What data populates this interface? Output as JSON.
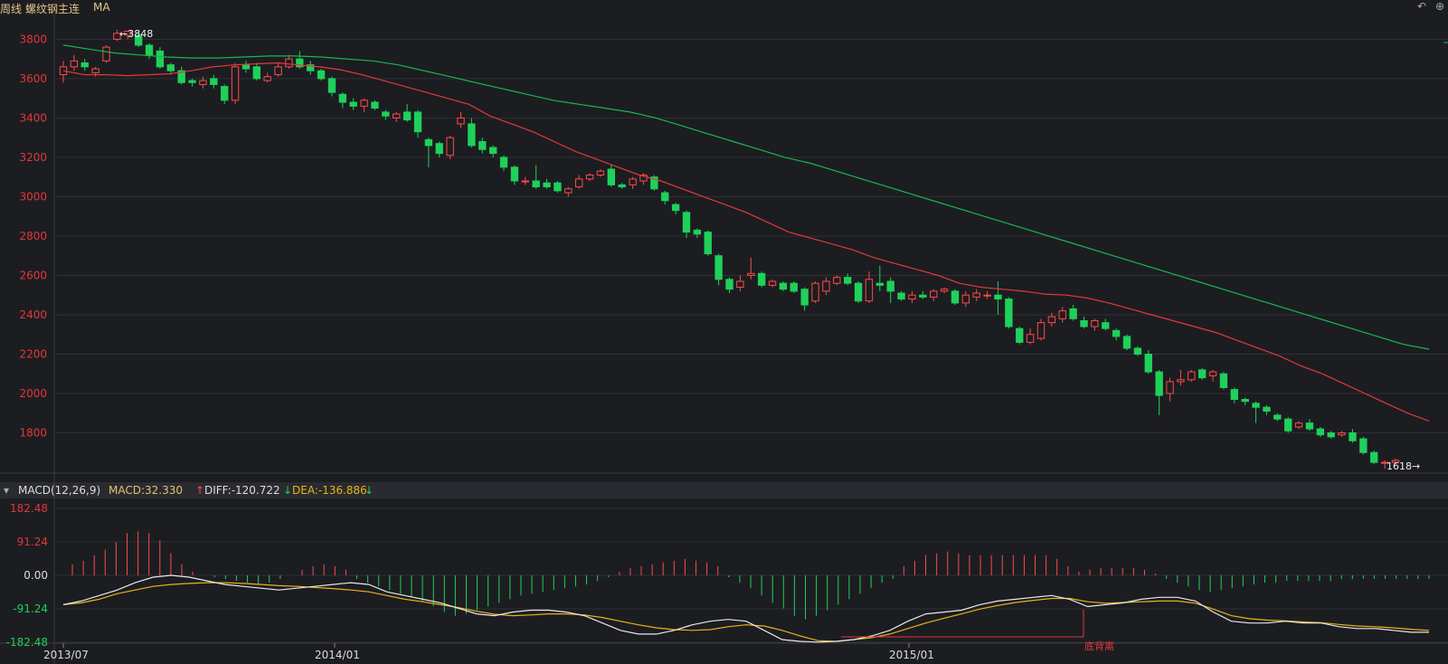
{
  "header": {
    "period": "周线",
    "instrument": "螺纹钢主连",
    "indicator": "MA",
    "icons": [
      "undo-icon",
      "zoom-in-icon"
    ]
  },
  "macd_header": {
    "title": "MACD(12,26,9)",
    "macd": "MACD:32.330",
    "diff": "DIFF:-120.722",
    "dea": "DEA:-136.886"
  },
  "annotation": {
    "label": "底背离"
  },
  "markers": {
    "high": "←3848",
    "low": "1618→"
  },
  "colors": {
    "up": "#ff4a4a",
    "down": "#1fd15b",
    "ma_red": "#e2383a",
    "ma_green": "#15b850",
    "diff": "#e8e8e8",
    "dea": "#e6b417",
    "bg": "#1c1d21",
    "grid": "#2e3036"
  },
  "chart_data": [
    {
      "type": "candlestick",
      "title": "螺纹钢主连 周线",
      "y_ticks": [
        3800,
        3600,
        3400,
        3200,
        3000,
        2800,
        2600,
        2400,
        2200,
        2000,
        1800
      ],
      "ylim": [
        1600,
        3880
      ],
      "x_ticks": [
        "2013/07",
        "2014/01",
        "2015/01"
      ],
      "high_marker": 3848,
      "low_marker": 1618,
      "candles": [
        [
          3620,
          3660,
          3580,
          3690
        ],
        [
          3660,
          3690,
          3640,
          3720
        ],
        [
          3680,
          3660,
          3640,
          3700
        ],
        [
          3630,
          3650,
          3610,
          3660
        ],
        [
          3690,
          3760,
          3680,
          3770
        ],
        [
          3800,
          3830,
          3790,
          3848
        ],
        [
          3820,
          3840,
          3800,
          3845
        ],
        [
          3820,
          3770,
          3760,
          3840
        ],
        [
          3770,
          3720,
          3700,
          3780
        ],
        [
          3740,
          3660,
          3650,
          3760
        ],
        [
          3670,
          3640,
          3620,
          3680
        ],
        [
          3640,
          3580,
          3570,
          3660
        ],
        [
          3590,
          3580,
          3560,
          3600
        ],
        [
          3570,
          3590,
          3550,
          3610
        ],
        [
          3600,
          3570,
          3550,
          3620
        ],
        [
          3560,
          3490,
          3470,
          3570
        ],
        [
          3490,
          3660,
          3470,
          3680
        ],
        [
          3670,
          3650,
          3630,
          3690
        ],
        [
          3660,
          3600,
          3590,
          3680
        ],
        [
          3590,
          3610,
          3580,
          3630
        ],
        [
          3620,
          3660,
          3610,
          3680
        ],
        [
          3660,
          3700,
          3650,
          3720
        ],
        [
          3700,
          3660,
          3650,
          3740
        ],
        [
          3670,
          3640,
          3620,
          3690
        ],
        [
          3640,
          3600,
          3590,
          3650
        ],
        [
          3600,
          3530,
          3510,
          3610
        ],
        [
          3520,
          3480,
          3450,
          3530
        ],
        [
          3480,
          3460,
          3440,
          3500
        ],
        [
          3460,
          3490,
          3430,
          3500
        ],
        [
          3480,
          3450,
          3440,
          3490
        ],
        [
          3430,
          3410,
          3390,
          3440
        ],
        [
          3400,
          3420,
          3380,
          3430
        ],
        [
          3430,
          3390,
          3380,
          3470
        ],
        [
          3430,
          3330,
          3300,
          3440
        ],
        [
          3290,
          3260,
          3150,
          3300
        ],
        [
          3270,
          3220,
          3200,
          3280
        ],
        [
          3210,
          3300,
          3190,
          3310
        ],
        [
          3370,
          3400,
          3350,
          3430
        ],
        [
          3370,
          3260,
          3250,
          3400
        ],
        [
          3280,
          3240,
          3220,
          3300
        ],
        [
          3250,
          3220,
          3200,
          3260
        ],
        [
          3200,
          3150,
          3130,
          3210
        ],
        [
          3150,
          3080,
          3060,
          3160
        ],
        [
          3080,
          3080,
          3060,
          3100
        ],
        [
          3080,
          3050,
          3040,
          3160
        ],
        [
          3070,
          3050,
          3040,
          3090
        ],
        [
          3070,
          3030,
          3020,
          3080
        ],
        [
          3020,
          3040,
          3000,
          3050
        ],
        [
          3050,
          3090,
          3040,
          3110
        ],
        [
          3090,
          3110,
          3080,
          3120
        ],
        [
          3110,
          3130,
          3100,
          3140
        ],
        [
          3140,
          3060,
          3050,
          3160
        ],
        [
          3060,
          3050,
          3040,
          3070
        ],
        [
          3060,
          3090,
          3040,
          3100
        ],
        [
          3080,
          3110,
          3060,
          3120
        ],
        [
          3100,
          3040,
          3030,
          3110
        ],
        [
          3020,
          2980,
          2960,
          3030
        ],
        [
          2960,
          2930,
          2910,
          2970
        ],
        [
          2920,
          2820,
          2790,
          2930
        ],
        [
          2830,
          2810,
          2790,
          2840
        ],
        [
          2820,
          2710,
          2700,
          2830
        ],
        [
          2700,
          2580,
          2550,
          2710
        ],
        [
          2580,
          2530,
          2510,
          2590
        ],
        [
          2540,
          2570,
          2520,
          2600
        ],
        [
          2600,
          2610,
          2580,
          2690
        ],
        [
          2610,
          2550,
          2540,
          2620
        ],
        [
          2550,
          2570,
          2540,
          2580
        ],
        [
          2560,
          2530,
          2520,
          2570
        ],
        [
          2560,
          2520,
          2510,
          2570
        ],
        [
          2530,
          2450,
          2420,
          2540
        ],
        [
          2470,
          2560,
          2460,
          2570
        ],
        [
          2520,
          2570,
          2500,
          2590
        ],
        [
          2560,
          2590,
          2550,
          2600
        ],
        [
          2590,
          2560,
          2550,
          2610
        ],
        [
          2560,
          2470,
          2460,
          2570
        ],
        [
          2470,
          2580,
          2460,
          2620
        ],
        [
          2560,
          2550,
          2520,
          2650
        ],
        [
          2570,
          2520,
          2460,
          2590
        ],
        [
          2510,
          2480,
          2470,
          2520
        ],
        [
          2480,
          2500,
          2460,
          2520
        ],
        [
          2500,
          2490,
          2480,
          2520
        ],
        [
          2490,
          2520,
          2470,
          2530
        ],
        [
          2520,
          2530,
          2510,
          2540
        ],
        [
          2520,
          2460,
          2450,
          2530
        ],
        [
          2460,
          2500,
          2440,
          2520
        ],
        [
          2490,
          2510,
          2470,
          2530
        ],
        [
          2500,
          2500,
          2480,
          2520
        ],
        [
          2500,
          2480,
          2400,
          2570
        ],
        [
          2480,
          2340,
          2330,
          2490
        ],
        [
          2330,
          2260,
          2250,
          2340
        ],
        [
          2260,
          2300,
          2250,
          2330
        ],
        [
          2280,
          2360,
          2270,
          2380
        ],
        [
          2360,
          2390,
          2340,
          2410
        ],
        [
          2380,
          2420,
          2360,
          2440
        ],
        [
          2430,
          2380,
          2370,
          2450
        ],
        [
          2370,
          2340,
          2330,
          2390
        ],
        [
          2340,
          2370,
          2320,
          2380
        ],
        [
          2360,
          2330,
          2320,
          2380
        ],
        [
          2320,
          2290,
          2270,
          2330
        ],
        [
          2290,
          2230,
          2220,
          2300
        ],
        [
          2230,
          2200,
          2190,
          2240
        ],
        [
          2200,
          2110,
          2100,
          2220
        ],
        [
          2110,
          1990,
          1890,
          2120
        ],
        [
          2000,
          2060,
          1960,
          2080
        ],
        [
          2060,
          2070,
          2040,
          2120
        ],
        [
          2070,
          2110,
          2060,
          2120
        ],
        [
          2120,
          2080,
          2070,
          2130
        ],
        [
          2090,
          2110,
          2060,
          2120
        ],
        [
          2100,
          2030,
          2020,
          2110
        ],
        [
          2020,
          1970,
          1950,
          2030
        ],
        [
          1970,
          1960,
          1940,
          1980
        ],
        [
          1950,
          1930,
          1850,
          1960
        ],
        [
          1930,
          1910,
          1890,
          1940
        ],
        [
          1890,
          1870,
          1860,
          1900
        ],
        [
          1870,
          1810,
          1800,
          1880
        ],
        [
          1830,
          1850,
          1820,
          1860
        ],
        [
          1850,
          1820,
          1810,
          1870
        ],
        [
          1820,
          1790,
          1780,
          1830
        ],
        [
          1800,
          1780,
          1770,
          1810
        ],
        [
          1790,
          1800,
          1780,
          1810
        ],
        [
          1800,
          1760,
          1750,
          1820
        ],
        [
          1770,
          1700,
          1690,
          1780
        ],
        [
          1700,
          1650,
          1640,
          1710
        ],
        [
          1650,
          1650,
          1618,
          1660
        ],
        [
          1650,
          1660,
          1640,
          1670
        ]
      ],
      "ma_red": [
        3640,
        3620,
        3620,
        3615,
        3620,
        3625,
        3640,
        3660,
        3670,
        3675,
        3680,
        3670,
        3660,
        3645,
        3620,
        3590,
        3560,
        3530,
        3500,
        3470,
        3410,
        3370,
        3330,
        3280,
        3230,
        3190,
        3150,
        3110,
        3080,
        3040,
        3000,
        2960,
        2920,
        2870,
        2820,
        2790,
        2760,
        2730,
        2690,
        2660,
        2630,
        2600,
        2560,
        2540,
        2530,
        2520,
        2505,
        2500,
        2485,
        2460,
        2430,
        2400,
        2370,
        2340,
        2310,
        2270,
        2230,
        2190,
        2140,
        2100,
        2050,
        2000,
        1950,
        1900,
        1860
      ],
      "ma_green": [
        3770,
        3750,
        3730,
        3720,
        3710,
        3705,
        3705,
        3710,
        3715,
        3715,
        3710,
        3700,
        3690,
        3670,
        3640,
        3610,
        3580,
        3550,
        3520,
        3490,
        3470,
        3450,
        3430,
        3400,
        3360,
        3320,
        3280,
        3240,
        3200,
        3170,
        3130,
        3090,
        3050,
        3010,
        2970,
        2930,
        2890,
        2850,
        2810,
        2770,
        2730,
        2690,
        2650,
        2610,
        2570,
        2530,
        2490,
        2450,
        2410,
        2370,
        2330,
        2290,
        2250,
        2225
      ]
    },
    {
      "type": "macd",
      "title": "MACD(12,26,9)",
      "y_ticks": [
        182.48,
        91.24,
        0.0,
        -91.24,
        -182.48
      ],
      "ylim": [
        -182.48,
        182.48
      ],
      "histogram": [
        30,
        40,
        55,
        70,
        90,
        115,
        120,
        115,
        95,
        60,
        30,
        10,
        0,
        -5,
        -10,
        -15,
        -20,
        -25,
        -20,
        -10,
        0,
        15,
        25,
        30,
        25,
        15,
        -10,
        -20,
        -30,
        -40,
        -50,
        -60,
        -70,
        -85,
        -100,
        -110,
        -105,
        -95,
        -85,
        -75,
        -65,
        -55,
        -50,
        -45,
        -40,
        -35,
        -30,
        -25,
        -15,
        -5,
        10,
        20,
        25,
        30,
        35,
        40,
        45,
        40,
        35,
        25,
        -5,
        -20,
        -35,
        -55,
        -75,
        -90,
        -110,
        -120,
        -110,
        -95,
        -80,
        -65,
        -50,
        -35,
        -20,
        -10,
        25,
        40,
        55,
        60,
        65,
        60,
        55,
        55,
        55,
        55,
        55,
        55,
        55,
        55,
        45,
        25,
        10,
        15,
        20,
        20,
        20,
        20,
        15,
        5,
        -10,
        -20,
        -30,
        -40,
        -45,
        -40,
        -35,
        -30,
        -25,
        -20,
        -20,
        -15,
        -15,
        -15,
        -15,
        -15,
        -10,
        -10,
        -10,
        -10,
        -10,
        -10,
        -10,
        -10,
        -10
      ],
      "diff": [
        -80,
        -70,
        -55,
        -40,
        -20,
        -5,
        0,
        -5,
        -15,
        -25,
        -30,
        -35,
        -40,
        -35,
        -30,
        -25,
        -20,
        -25,
        -45,
        -55,
        -65,
        -75,
        -90,
        -105,
        -110,
        -100,
        -95,
        -95,
        -100,
        -110,
        -130,
        -150,
        -160,
        -160,
        -150,
        -135,
        -125,
        -120,
        -125,
        -150,
        -175,
        -180,
        -182,
        -180,
        -175,
        -165,
        -150,
        -125,
        -105,
        -100,
        -95,
        -80,
        -70,
        -65,
        -60,
        -55,
        -65,
        -85,
        -80,
        -75,
        -65,
        -60,
        -60,
        -70,
        -100,
        -125,
        -130,
        -130,
        -125,
        -130,
        -130,
        -140,
        -145,
        -145,
        -150,
        -155,
        -155
      ],
      "dea": [
        -80,
        -75,
        -65,
        -50,
        -40,
        -30,
        -25,
        -22,
        -20,
        -20,
        -22,
        -25,
        -28,
        -30,
        -33,
        -36,
        -40,
        -45,
        -55,
        -65,
        -72,
        -80,
        -88,
        -98,
        -106,
        -110,
        -108,
        -105,
        -105,
        -108,
        -115,
        -125,
        -135,
        -143,
        -148,
        -150,
        -148,
        -140,
        -135,
        -138,
        -150,
        -165,
        -178,
        -180,
        -175,
        -170,
        -160,
        -145,
        -130,
        -117,
        -105,
        -92,
        -82,
        -74,
        -68,
        -63,
        -63,
        -72,
        -76,
        -74,
        -72,
        -70,
        -70,
        -76,
        -92,
        -110,
        -118,
        -122,
        -124,
        -127,
        -129,
        -134,
        -138,
        -140,
        -143,
        -147,
        -150
      ]
    }
  ]
}
